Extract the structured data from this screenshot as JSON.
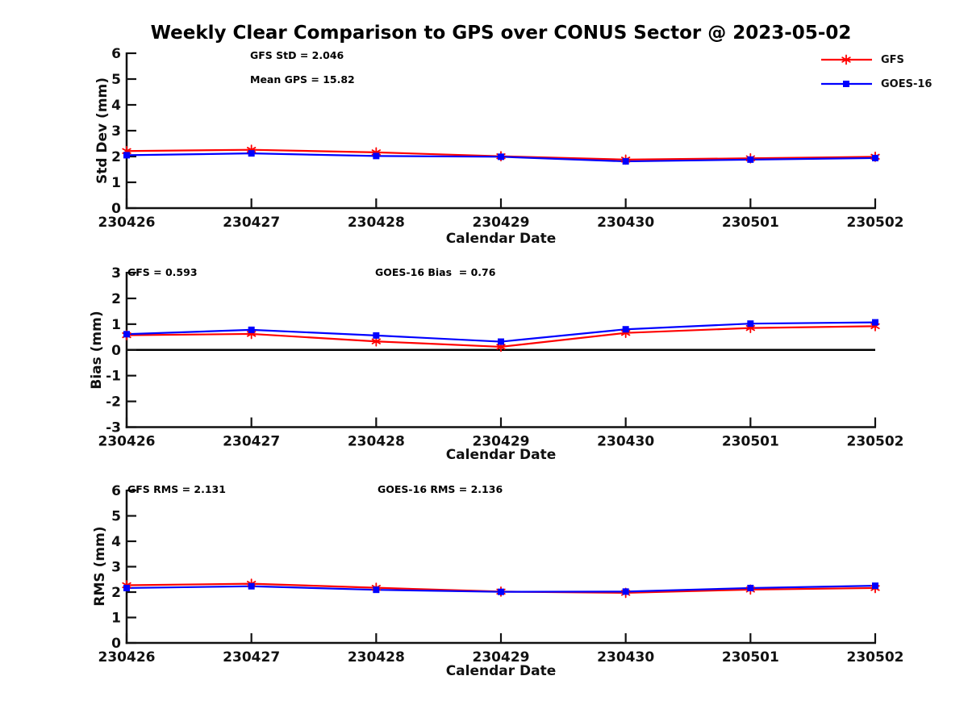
{
  "title": "Weekly Clear Comparison to GPS over CONUS Sector @ 2023-05-02",
  "legend": {
    "items": [
      {
        "label": "GFS",
        "color": "#ff0000",
        "marker": "asterisk"
      },
      {
        "label": "GOES-16",
        "color": "#0000ff",
        "marker": "square"
      }
    ]
  },
  "chart_data": [
    {
      "type": "line",
      "name": "stddev",
      "ylabel": "Std Dev (mm)",
      "xlabel": "Calendar Date",
      "categories": [
        "230426",
        "230427",
        "230428",
        "230429",
        "230430",
        "230501",
        "230502"
      ],
      "series": [
        {
          "name": "GFS",
          "color": "#ff0000",
          "marker": "asterisk",
          "values": [
            2.21,
            2.26,
            2.16,
            2.01,
            1.88,
            1.93,
            1.99
          ]
        },
        {
          "name": "GOES-16",
          "color": "#0000ff",
          "marker": "square",
          "values": [
            2.05,
            2.12,
            2.02,
            1.99,
            1.81,
            1.88,
            1.94
          ]
        }
      ],
      "ylim": [
        0,
        6
      ],
      "yticks": [
        0,
        1,
        2,
        3,
        4,
        5,
        6
      ],
      "zero_line": false,
      "grid": false,
      "annotations": [
        {
          "text": "GFS StD = 2.046"
        },
        {
          "text": "Mean GPS = 15.82"
        }
      ]
    },
    {
      "type": "line",
      "name": "bias",
      "ylabel": "Bias (mm)",
      "xlabel": "Calendar Date",
      "categories": [
        "230426",
        "230427",
        "230428",
        "230429",
        "230430",
        "230501",
        "230502"
      ],
      "series": [
        {
          "name": "GFS",
          "color": "#ff0000",
          "marker": "asterisk",
          "values": [
            0.57,
            0.62,
            0.33,
            0.12,
            0.66,
            0.85,
            0.92
          ]
        },
        {
          "name": "GOES-16",
          "color": "#0000ff",
          "marker": "square",
          "values": [
            0.61,
            0.78,
            0.56,
            0.32,
            0.8,
            1.02,
            1.07
          ]
        }
      ],
      "ylim": [
        -3,
        3
      ],
      "yticks": [
        -3,
        -2,
        -1,
        0,
        1,
        2,
        3
      ],
      "zero_line": true,
      "grid": false,
      "annotations": [
        {
          "text": "GFS = 0.593"
        },
        {
          "text": "GOES-16 Bias  = 0.76"
        }
      ]
    },
    {
      "type": "line",
      "name": "rms",
      "ylabel": "RMS (mm)",
      "xlabel": "Calendar Date",
      "categories": [
        "230426",
        "230427",
        "230428",
        "230429",
        "230430",
        "230501",
        "230502"
      ],
      "series": [
        {
          "name": "GFS",
          "color": "#ff0000",
          "marker": "asterisk",
          "values": [
            2.27,
            2.33,
            2.17,
            2.02,
            1.97,
            2.1,
            2.16
          ]
        },
        {
          "name": "GOES-16",
          "color": "#0000ff",
          "marker": "square",
          "values": [
            2.16,
            2.23,
            2.09,
            2.01,
            2.02,
            2.16,
            2.25
          ]
        }
      ],
      "ylim": [
        0,
        6
      ],
      "yticks": [
        0,
        1,
        2,
        3,
        4,
        5,
        6
      ],
      "zero_line": false,
      "grid": false,
      "annotations": [
        {
          "text": "GFS RMS = 2.131"
        },
        {
          "text": "GOES-16 RMS = 2.136"
        }
      ]
    }
  ]
}
